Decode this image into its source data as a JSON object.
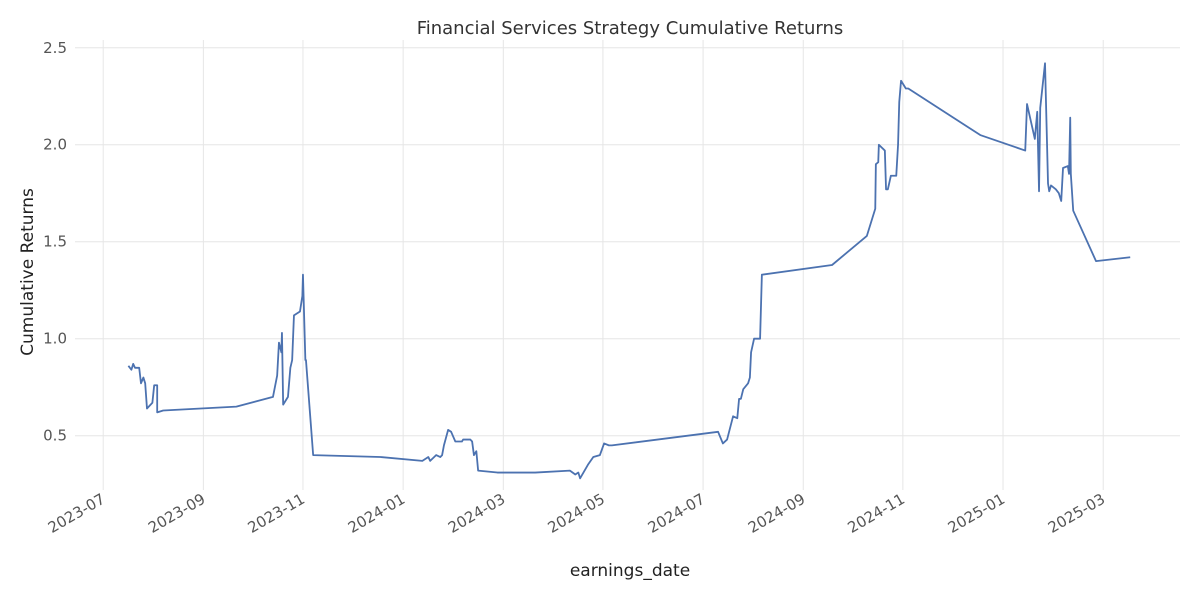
{
  "chart_data": {
    "type": "line",
    "title": "Financial Services Strategy Cumulative Returns",
    "x_label": "earnings_date",
    "y_label": "Cumulative Returns",
    "grid": true,
    "xlim": [
      2023.453,
      2025.295
    ],
    "ylim": [
      0.22,
      2.54
    ],
    "xticks": [
      {
        "value": 2023.5,
        "label": "2023-07"
      },
      {
        "value": 2023.667,
        "label": "2023-09"
      },
      {
        "value": 2023.833,
        "label": "2023-11"
      },
      {
        "value": 2024,
        "label": "2024-01"
      },
      {
        "value": 2024.167,
        "label": "2024-03"
      },
      {
        "value": 2024.333,
        "label": "2024-05"
      },
      {
        "value": 2024.5,
        "label": "2024-07"
      },
      {
        "value": 2024.667,
        "label": "2024-09"
      },
      {
        "value": 2024.833,
        "label": "2024-11"
      },
      {
        "value": 2025,
        "label": "2025-01"
      },
      {
        "value": 2025.167,
        "label": "2025-03"
      }
    ],
    "yticks": [
      0.5,
      {
        "value": 1,
        "label": "1.0"
      },
      1.5,
      {
        "value": 2,
        "label": "2.0"
      },
      2.5
    ],
    "x": [
      2023.542,
      2023.547,
      2023.55,
      2023.553,
      2023.56,
      2023.563,
      2023.567,
      2023.57,
      2023.573,
      2023.582,
      2023.585,
      2023.59,
      2023.59,
      2023.6,
      2023.722,
      2023.783,
      2023.79,
      2023.793,
      2023.797,
      2023.798,
      2023.8,
      2023.808,
      2023.812,
      2023.815,
      2023.818,
      2023.828,
      2023.832,
      2023.833,
      2023.837,
      2023.838,
      2023.85,
      2023.962,
      2024.032,
      2024.042,
      2024.045,
      2024.055,
      2024.062,
      2024.065,
      2024.068,
      2024.075,
      2024.08,
      2024.087,
      2024.098,
      2024.1,
      2024.112,
      2024.115,
      2024.118,
      2024.122,
      2024.125,
      2024.157,
      2024.22,
      2024.278,
      2024.287,
      2024.292,
      2024.295,
      2024.308,
      2024.317,
      2024.328,
      2024.335,
      2024.343,
      2024.348,
      2024.525,
      2024.533,
      2024.54,
      2024.55,
      2024.557,
      2024.56,
      2024.563,
      2024.567,
      2024.575,
      2024.578,
      2024.58,
      2024.585,
      2024.595,
      2024.598,
      2024.715,
      2024.773,
      2024.787,
      2024.788,
      2024.792,
      2024.793,
      2024.803,
      2024.805,
      2024.808,
      2024.813,
      2024.822,
      2024.825,
      2024.827,
      2024.83,
      2024.838,
      2024.842,
      2024.962,
      2025.037,
      2025.04,
      2025.053,
      2025.057,
      2025.06,
      2025.062,
      2025.07,
      2025.075,
      2025.077,
      2025.08,
      2025.088,
      2025.093,
      2025.097,
      2025.1,
      2025.108,
      2025.11,
      2025.112,
      2025.113,
      2025.117,
      2025.155,
      2025.212
    ],
    "series": [
      {
        "color": "#4c72b0",
        "values": [
          0.86,
          0.84,
          0.87,
          0.85,
          0.85,
          0.77,
          0.8,
          0.77,
          0.64,
          0.67,
          0.76,
          0.76,
          0.62,
          0.63,
          0.65,
          0.7,
          0.81,
          0.98,
          0.93,
          1.03,
          0.66,
          0.7,
          0.85,
          0.89,
          1.12,
          1.14,
          1.22,
          1.33,
          0.89,
          0.89,
          0.4,
          0.39,
          0.37,
          0.39,
          0.37,
          0.4,
          0.39,
          0.4,
          0.45,
          0.53,
          0.52,
          0.47,
          0.47,
          0.48,
          0.48,
          0.47,
          0.4,
          0.42,
          0.32,
          0.31,
          0.31,
          0.32,
          0.3,
          0.31,
          0.28,
          0.35,
          0.39,
          0.4,
          0.46,
          0.45,
          0.45,
          0.52,
          0.46,
          0.48,
          0.6,
          0.59,
          0.69,
          0.69,
          0.74,
          0.77,
          0.8,
          0.93,
          1.0,
          1.0,
          1.33,
          1.38,
          1.53,
          1.67,
          1.9,
          1.91,
          2.0,
          1.97,
          1.77,
          1.77,
          1.84,
          1.84,
          2.0,
          2.22,
          2.33,
          2.29,
          2.29,
          2.05,
          1.97,
          2.21,
          2.03,
          2.17,
          1.76,
          2.19,
          2.42,
          1.8,
          1.76,
          1.79,
          1.77,
          1.75,
          1.71,
          1.88,
          1.89,
          1.85,
          2.14,
          1.85,
          1.66,
          1.4,
          1.42
        ]
      }
    ]
  }
}
